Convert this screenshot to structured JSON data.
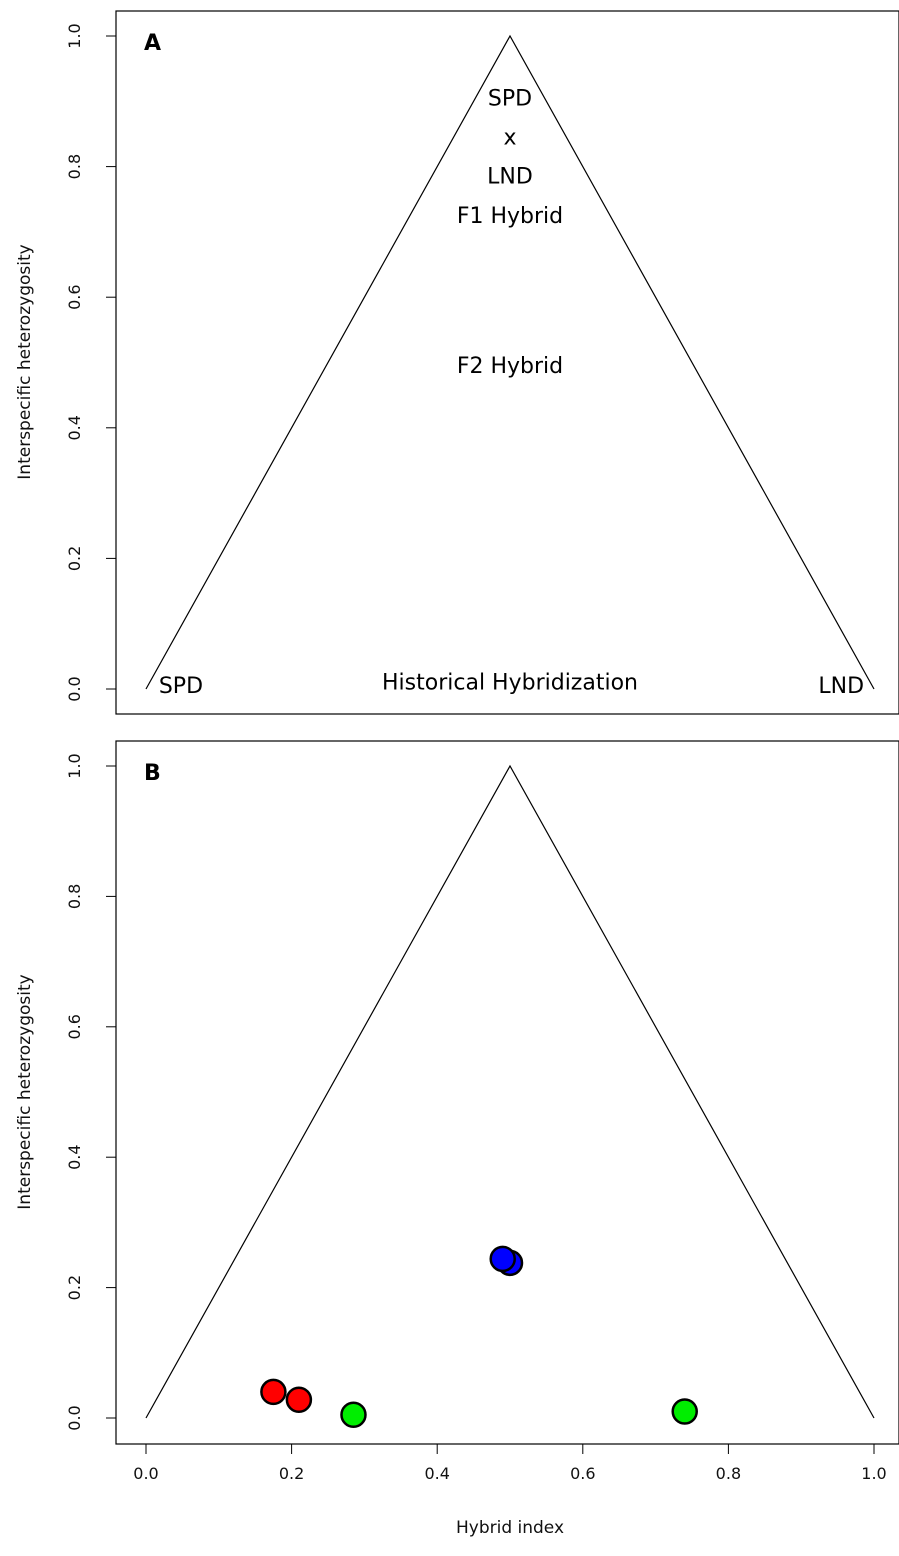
{
  "chart_data": [
    {
      "type": "scatter",
      "panel_label": "A",
      "xlabel": "",
      "ylabel": "Interspecific heterozygosity",
      "xlim": [
        0,
        1
      ],
      "ylim": [
        0,
        1
      ],
      "y_ticks": [
        "0.0",
        "0.2",
        "0.4",
        "0.6",
        "0.8",
        "1.0"
      ],
      "x_ticks": [],
      "triangle": [
        [
          0,
          0
        ],
        [
          0.5,
          1
        ],
        [
          1,
          0
        ]
      ],
      "annotations": [
        {
          "text": "SPD",
          "x": 0.5,
          "y": 0.9
        },
        {
          "text": "x",
          "x": 0.5,
          "y": 0.84
        },
        {
          "text": "LND",
          "x": 0.5,
          "y": 0.78
        },
        {
          "text": "F1 Hybrid",
          "x": 0.5,
          "y": 0.72
        },
        {
          "text": "F2 Hybrid",
          "x": 0.5,
          "y": 0.49
        },
        {
          "text": "SPD",
          "x": 0.048,
          "y": 0.0
        },
        {
          "text": "Historical Hybridization",
          "x": 0.5,
          "y": 0.005
        },
        {
          "text": "LND",
          "x": 0.955,
          "y": 0.0
        }
      ],
      "points": []
    },
    {
      "type": "scatter",
      "panel_label": "B",
      "xlabel": "Hybrid index",
      "ylabel": "Interspecific heterozygosity",
      "xlim": [
        0,
        1
      ],
      "ylim": [
        0,
        1
      ],
      "y_ticks": [
        "0.0",
        "0.2",
        "0.4",
        "0.6",
        "0.8",
        "1.0"
      ],
      "x_ticks": [
        "0.0",
        "0.2",
        "0.4",
        "0.6",
        "0.8",
        "1.0"
      ],
      "triangle": [
        [
          0,
          0
        ],
        [
          0.5,
          1
        ],
        [
          1,
          0
        ]
      ],
      "annotations": [],
      "points": [
        {
          "x": 0.175,
          "y": 0.04,
          "color": "#ff0000"
        },
        {
          "x": 0.21,
          "y": 0.028,
          "color": "#ff0000"
        },
        {
          "x": 0.285,
          "y": 0.005,
          "color": "#00ee00"
        },
        {
          "x": 0.74,
          "y": 0.01,
          "color": "#00ee00"
        },
        {
          "x": 0.5,
          "y": 0.238,
          "color": "#0000ff"
        },
        {
          "x": 0.49,
          "y": 0.244,
          "color": "#0000ff"
        }
      ]
    }
  ]
}
